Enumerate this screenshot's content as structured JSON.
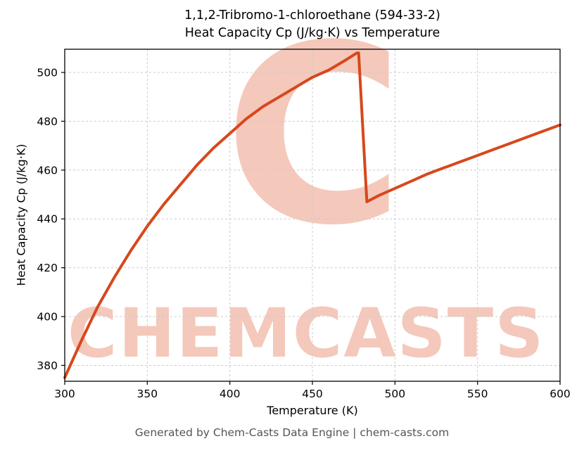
{
  "title": {
    "line1": "1,1,2-Tribromo-1-chloroethane (594-33-2)",
    "line2": "Heat Capacity Cp (J/kg·K) vs Temperature"
  },
  "watermark": {
    "letter": "C",
    "text": "CHEMCASTS"
  },
  "footer": "Generated by Chem-Casts Data Engine | chem-casts.com",
  "chart_data": {
    "type": "line",
    "title": "1,1,2-Tribromo-1-chloroethane (594-33-2) Heat Capacity Cp (J/kg·K) vs Temperature",
    "xlabel": "Temperature (K)",
    "ylabel": "Heat Capacity Cp (J/kg·K)",
    "xlim": [
      300,
      600
    ],
    "ylim": [
      373.5,
      509.5
    ],
    "xticks": [
      300,
      350,
      400,
      450,
      500,
      550,
      600
    ],
    "yticks": [
      380,
      400,
      420,
      440,
      460,
      480,
      500
    ],
    "grid": true,
    "grid_style": "dashed",
    "legend": "none",
    "line_color": "#d6481c",
    "line_width": 4,
    "series": [
      {
        "name": "Cp",
        "x": [
          300,
          310,
          320,
          330,
          340,
          350,
          360,
          370,
          380,
          390,
          400,
          410,
          420,
          430,
          440,
          450,
          460,
          470,
          477,
          478,
          483,
          490,
          500,
          510,
          520,
          530,
          540,
          550,
          560,
          570,
          580,
          590,
          600
        ],
        "y": [
          375,
          390,
          404,
          416,
          427,
          437,
          446,
          454,
          462,
          469,
          475,
          481,
          486,
          490,
          494,
          498,
          501,
          505,
          508,
          508,
          447,
          449.5,
          452.5,
          455.5,
          458.5,
          461,
          463.5,
          466,
          468.5,
          471,
          473.5,
          476,
          478.5
        ]
      }
    ]
  }
}
